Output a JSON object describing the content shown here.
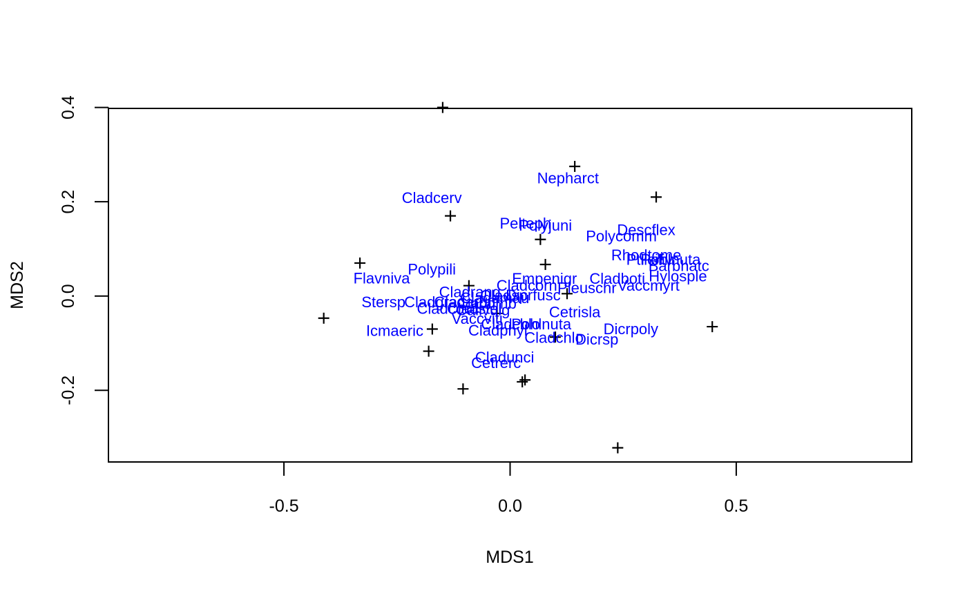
{
  "chart_data": {
    "type": "scatter",
    "title": "",
    "xlabel": "MDS1",
    "ylabel": "MDS2",
    "xlim": [
      -0.888,
      0.888
    ],
    "ylim": [
      -0.352,
      0.398
    ],
    "x_ticks": [
      -0.5,
      0.0,
      0.5
    ],
    "x_tick_labels": [
      "-0.5",
      "0.0",
      "0.5"
    ],
    "y_ticks": [
      -0.2,
      0.0,
      0.2,
      0.4
    ],
    "y_tick_labels": [
      "-0.2",
      "0.0",
      "0.2",
      "0.4"
    ],
    "grid": false,
    "legend": "none",
    "colors": {
      "sites": "#000000",
      "species": "#0000ff"
    },
    "sites": {
      "marker": "+",
      "points": [
        {
          "x": -0.149,
          "y": 0.4
        },
        {
          "x": 0.143,
          "y": 0.275
        },
        {
          "x": 0.323,
          "y": 0.21
        },
        {
          "x": -0.132,
          "y": 0.17
        },
        {
          "x": 0.067,
          "y": 0.12
        },
        {
          "x": -0.332,
          "y": 0.07
        },
        {
          "x": 0.078,
          "y": 0.067
        },
        {
          "x": -0.091,
          "y": 0.022
        },
        {
          "x": 0.126,
          "y": 0.005
        },
        {
          "x": -0.029,
          "y": -0.037
        },
        {
          "x": -0.172,
          "y": -0.07
        },
        {
          "x": -0.412,
          "y": -0.047
        },
        {
          "x": 0.447,
          "y": -0.065
        },
        {
          "x": 0.1,
          "y": -0.087
        },
        {
          "x": -0.18,
          "y": -0.117
        },
        {
          "x": 0.033,
          "y": -0.178
        },
        {
          "x": 0.027,
          "y": -0.182
        },
        {
          "x": -0.104,
          "y": -0.197
        },
        {
          "x": 0.238,
          "y": -0.322
        }
      ]
    },
    "species": [
      {
        "label": "Nepharct",
        "x": 0.128,
        "y": 0.25
      },
      {
        "label": "Cladcerv",
        "x": -0.173,
        "y": 0.208
      },
      {
        "label": "Pelteph",
        "x": 0.034,
        "y": 0.154
      },
      {
        "label": "Polyjuni",
        "x": 0.078,
        "y": 0.15
      },
      {
        "label": "Descflex",
        "x": 0.301,
        "y": 0.14
      },
      {
        "label": "Polycomm",
        "x": 0.246,
        "y": 0.127
      },
      {
        "label": "Rhodtome",
        "x": 0.301,
        "y": 0.087
      },
      {
        "label": "Ptilciliv",
        "x": 0.308,
        "y": 0.077
      },
      {
        "label": "Pohlnuta",
        "x": 0.355,
        "y": 0.077
      },
      {
        "label": "Barbhatc",
        "x": 0.373,
        "y": 0.064
      },
      {
        "label": "Polypili",
        "x": -0.173,
        "y": 0.057
      },
      {
        "label": "Hylosple",
        "x": 0.371,
        "y": 0.042
      },
      {
        "label": "Flavniva",
        "x": -0.284,
        "y": 0.038
      },
      {
        "label": "Empenigr",
        "x": 0.076,
        "y": 0.037
      },
      {
        "label": "Cladboti",
        "x": 0.237,
        "y": 0.037
      },
      {
        "label": "Vaccmyrt",
        "x": 0.306,
        "y": 0.022
      },
      {
        "label": "Pleuschr",
        "x": 0.17,
        "y": 0.017
      },
      {
        "label": "Cladcorn",
        "x": 0.037,
        "y": 0.022
      },
      {
        "label": "Dicrfusc",
        "x": 0.051,
        "y": 0.002
      },
      {
        "label": "Cladrang",
        "x": -0.089,
        "y": 0.008
      },
      {
        "label": "Cladsp",
        "x": -0.014,
        "y": 0.001
      },
      {
        "label": "Cladamau",
        "x": -0.034,
        "y": -0.004
      },
      {
        "label": "Stersp",
        "x": -0.28,
        "y": -0.013
      },
      {
        "label": "Cladgrac",
        "x": -0.167,
        "y": -0.013
      },
      {
        "label": "Cladarbu",
        "x": -0.1,
        "y": -0.013
      },
      {
        "label": "Cladfimb",
        "x": -0.052,
        "y": -0.016
      },
      {
        "label": "Cladcocc",
        "x": -0.137,
        "y": -0.027
      },
      {
        "label": "Cladstel",
        "x": -0.079,
        "y": -0.027
      },
      {
        "label": "Callvulg",
        "x": -0.06,
        "y": -0.03
      },
      {
        "label": "Cetrisla",
        "x": 0.143,
        "y": -0.034
      },
      {
        "label": "Vaccviti",
        "x": -0.073,
        "y": -0.048
      },
      {
        "label": "Cladchlo",
        "x": 0.001,
        "y": -0.06
      },
      {
        "label": "Pohlnuta",
        "x": 0.069,
        "y": -0.06
      },
      {
        "label": "Cladphyl",
        "x": -0.027,
        "y": -0.073
      },
      {
        "label": "Dicrpoly",
        "x": 0.267,
        "y": -0.07
      },
      {
        "label": "Icmaeric",
        "x": -0.255,
        "y": -0.074
      },
      {
        "label": "Cladchlo",
        "x": 0.097,
        "y": -0.088
      },
      {
        "label": "Dicrsp",
        "x": 0.192,
        "y": -0.092
      },
      {
        "label": "Cladunci",
        "x": -0.012,
        "y": -0.13
      },
      {
        "label": "Cetrerc",
        "x": -0.031,
        "y": -0.142
      }
    ]
  }
}
